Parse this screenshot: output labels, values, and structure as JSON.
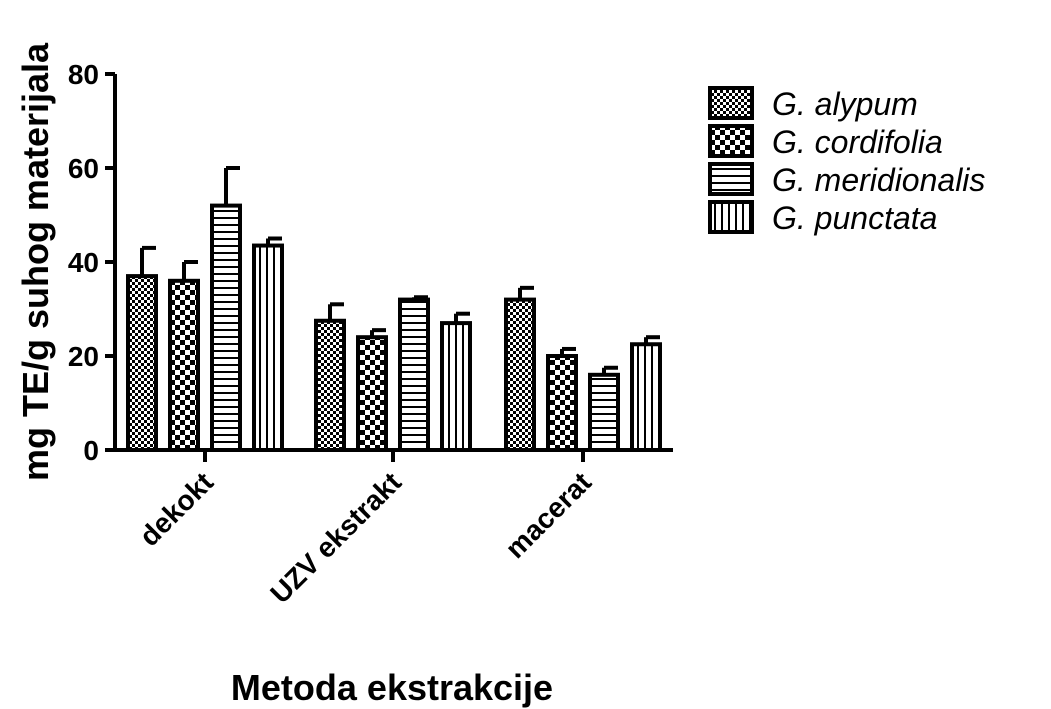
{
  "chart_data": {
    "type": "bar",
    "xlabel": "Metoda ekstrakcije",
    "ylabel": "mg TE/g suhog materijala",
    "ylim": [
      0,
      80
    ],
    "yticks": [
      "0",
      "20",
      "40",
      "60",
      "80"
    ],
    "categories": [
      "dekokt",
      "UZV ekstrakt",
      "macerat"
    ],
    "series": [
      {
        "name": "G. alypum",
        "pattern": "checker-fine",
        "values": [
          37,
          27.5,
          32
        ],
        "errors": [
          6,
          3.5,
          2.5
        ]
      },
      {
        "name": "G. cordifolia",
        "pattern": "checker-coarse",
        "values": [
          36,
          24,
          20
        ],
        "errors": [
          4,
          1.5,
          1.5
        ]
      },
      {
        "name": "G. meridionalis",
        "pattern": "horizontal-lines",
        "values": [
          52,
          32,
          16
        ],
        "errors": [
          8,
          0.5,
          1.5
        ]
      },
      {
        "name": "G. punctata",
        "pattern": "vertical-lines",
        "values": [
          43.5,
          27,
          22.5
        ],
        "errors": [
          1.5,
          2,
          1.5
        ]
      }
    ],
    "grid": false,
    "legend": "right"
  }
}
